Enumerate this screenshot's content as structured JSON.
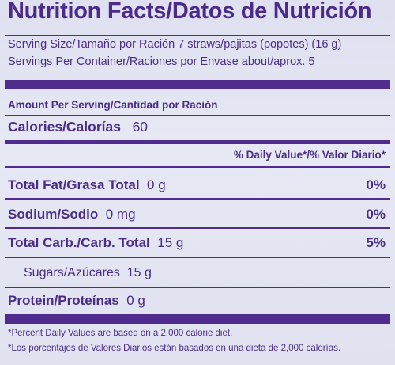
{
  "label": {
    "title": "Nutrition Facts/Datos de Nutrición",
    "serving_size": "Serving Size/Tamaño por Ración  7 straws/pajitas (popotes) (16 g)",
    "servings_per_container": "Servings Per Container/Raciones por Envase  about/aprox. 5",
    "amount_per_serving": "Amount Per Serving/Cantidad por Ración",
    "calories_label": "Calories/Calorías",
    "calories_value": "60",
    "daily_value_header": "% Daily Value*/% Valor Diario*",
    "nutrients": [
      {
        "name": "Total Fat/Grasa Total",
        "amount": "0 g",
        "dv": "0%"
      },
      {
        "name": "Sodium/Sodio",
        "amount": "0 mg",
        "dv": "0%"
      },
      {
        "name": "Total Carb./Carb. Total",
        "amount": "15 g",
        "dv": "5%"
      },
      {
        "name": "Sugars/Azúcares",
        "amount": "15 g",
        "dv": ""
      },
      {
        "name": "Protein/Proteínas",
        "amount": "0 g",
        "dv": ""
      }
    ],
    "footnote_en": "*Percent Daily Values are based on a 2,000 calorie diet.",
    "footnote_es": "*Los porcentajes de Valores Diarios están basados en una dieta de 2,000 calorías."
  },
  "colors": {
    "ink": "#4f2c8d",
    "background": "#e3e4f2"
  }
}
